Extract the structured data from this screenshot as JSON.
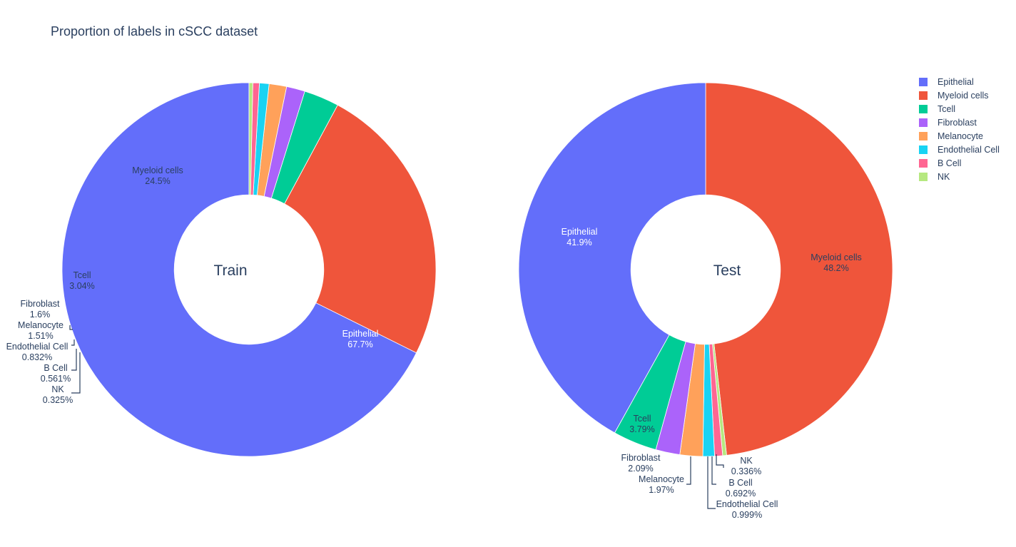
{
  "chart_data": {
    "type": "pie",
    "title": "Proportion of labels in cSCC dataset",
    "hole": 0.4,
    "legend": {
      "position": "top-right",
      "entries": [
        "Epithelial",
        "Myeloid cells",
        "Tcell",
        "Fibroblast",
        "Melanocyte",
        "Endothelial Cell",
        "B Cell",
        "NK"
      ]
    },
    "colors": {
      "Epithelial": "#636efa",
      "Myeloid cells": "#ef553b",
      "Tcell": "#00cc96",
      "Fibroblast": "#ab63fa",
      "Melanocyte": "#ffa15a",
      "Endothelial Cell": "#19d3f3",
      "B Cell": "#ff6692",
      "NK": "#b6e880"
    },
    "pies": [
      {
        "name": "Train",
        "center_label": "Train",
        "slices": [
          {
            "label": "Epithelial",
            "value": 67.7,
            "text": "67.7%"
          },
          {
            "label": "Myeloid cells",
            "value": 24.5,
            "text": "24.5%"
          },
          {
            "label": "Tcell",
            "value": 3.04,
            "text": "3.04%"
          },
          {
            "label": "Fibroblast",
            "value": 1.6,
            "text": "1.6%"
          },
          {
            "label": "Melanocyte",
            "value": 1.51,
            "text": "1.51%"
          },
          {
            "label": "Endothelial Cell",
            "value": 0.832,
            "text": "0.832%"
          },
          {
            "label": "B Cell",
            "value": 0.561,
            "text": "0.561%"
          },
          {
            "label": "NK",
            "value": 0.325,
            "text": "0.325%"
          }
        ]
      },
      {
        "name": "Test",
        "center_label": "Test",
        "slices": [
          {
            "label": "Myeloid cells",
            "value": 48.2,
            "text": "48.2%"
          },
          {
            "label": "NK",
            "value": 0.336,
            "text": "0.336%"
          },
          {
            "label": "B Cell",
            "value": 0.692,
            "text": "0.692%"
          },
          {
            "label": "Endothelial Cell",
            "value": 0.999,
            "text": "0.999%"
          },
          {
            "label": "Melanocyte",
            "value": 1.97,
            "text": "1.97%"
          },
          {
            "label": "Fibroblast",
            "value": 2.09,
            "text": "2.09%"
          },
          {
            "label": "Tcell",
            "value": 3.79,
            "text": "3.79%"
          },
          {
            "label": "Epithelial",
            "value": 41.9,
            "text": "41.9%"
          }
        ]
      }
    ]
  }
}
